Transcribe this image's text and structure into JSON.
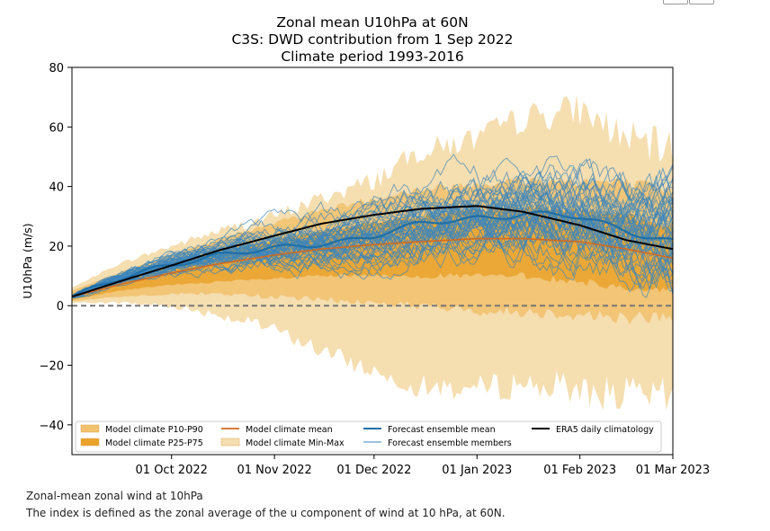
{
  "chart_data": {
    "type": "line",
    "title": [
      "Zonal mean U10hPa at 60N",
      "C3S: DWD contribution from 1 Sep 2022",
      "Climate period 1993-2016"
    ],
    "ylabel": "U10hPa (m/s)",
    "xlabel": "",
    "ylim": [
      -50,
      80
    ],
    "yticks": [
      -40,
      -20,
      0,
      20,
      40,
      60,
      80
    ],
    "xlim": [
      "2022-09-01",
      "2023-03-01"
    ],
    "xticks": [
      {
        "date": "2022-10-01",
        "label": "01 Oct 2022"
      },
      {
        "date": "2022-11-01",
        "label": "01 Nov 2022"
      },
      {
        "date": "2022-12-01",
        "label": "01 Dec 2022"
      },
      {
        "date": "2023-01-01",
        "label": "01 Jan 2023"
      },
      {
        "date": "2023-02-01",
        "label": "01 Feb 2023"
      },
      {
        "date": "2023-03-01",
        "label": "01 Mar 2023"
      }
    ],
    "zero_line": 0,
    "legend_position": "lower-center",
    "legend": [
      {
        "key": "p10_p90",
        "label": "Model climate P10-P90"
      },
      {
        "key": "p25_p75",
        "label": "Model climate P25-P75"
      },
      {
        "key": "clim_mean",
        "label": "Model climate mean"
      },
      {
        "key": "minmax",
        "label": "Model climate Min-Max"
      },
      {
        "key": "ens_mean",
        "label": "Forecast ensemble mean"
      },
      {
        "key": "members",
        "label": "Forecast ensemble members"
      },
      {
        "key": "era5",
        "label": "ERA5 daily climatology"
      }
    ],
    "colors": {
      "minmax": "#f5deb0",
      "p10_p90": "#f1c16d",
      "p25_p75": "#eaa22a",
      "clim_mean": "#d2691e",
      "ens_mean": "#1f6fa8",
      "members": "#3b86bd",
      "era5": "#000000",
      "zero_line": "#777777"
    },
    "series": {
      "dates": [
        "2022-09-01",
        "2022-09-15",
        "2022-10-01",
        "2022-10-15",
        "2022-11-01",
        "2022-11-15",
        "2022-12-01",
        "2022-12-15",
        "2023-01-01",
        "2023-01-15",
        "2023-02-01",
        "2023-02-15",
        "2023-03-01"
      ],
      "era5": [
        3,
        8,
        13.5,
        18.5,
        23.5,
        27.5,
        30.5,
        32.5,
        33.5,
        31.5,
        27,
        22,
        19
      ],
      "clim_mean": [
        3,
        7,
        11,
        14,
        17,
        19,
        20.5,
        21.5,
        22.5,
        22.5,
        21.5,
        19,
        16
      ],
      "ens_mean": [
        3,
        9,
        14,
        17,
        19,
        21,
        23.5,
        27,
        30,
        31,
        29,
        26,
        22
      ],
      "p25_p75_low": [
        2,
        5,
        7,
        8,
        9,
        10,
        10,
        10,
        10,
        10,
        8,
        6,
        5
      ],
      "p25_p75_high": [
        4,
        9,
        14,
        18,
        22,
        25,
        28,
        30,
        32,
        33,
        32,
        30,
        27
      ],
      "p10_p90_low": [
        1.5,
        3,
        4,
        4,
        3,
        2,
        1,
        0,
        -2,
        -2,
        -3,
        -4,
        -4
      ],
      "p10_p90_high": [
        5,
        11,
        17,
        22,
        28,
        32,
        36,
        39,
        41,
        42,
        42,
        41,
        38
      ],
      "minmax_low": [
        1,
        1,
        0,
        -3,
        -8,
        -15,
        -22,
        -27,
        -28,
        -26,
        -28,
        -30,
        -31
      ],
      "minmax_high": [
        6,
        14,
        20,
        25,
        30,
        36,
        42,
        52,
        56,
        63,
        66,
        56,
        52
      ]
    },
    "ensemble_members": 50
  },
  "captions": {
    "line1": "Zonal-mean zonal wind at 10hPa",
    "line2": "The index is defined as the zonal average of the u component of wind at 10 hPa, at 60N."
  }
}
